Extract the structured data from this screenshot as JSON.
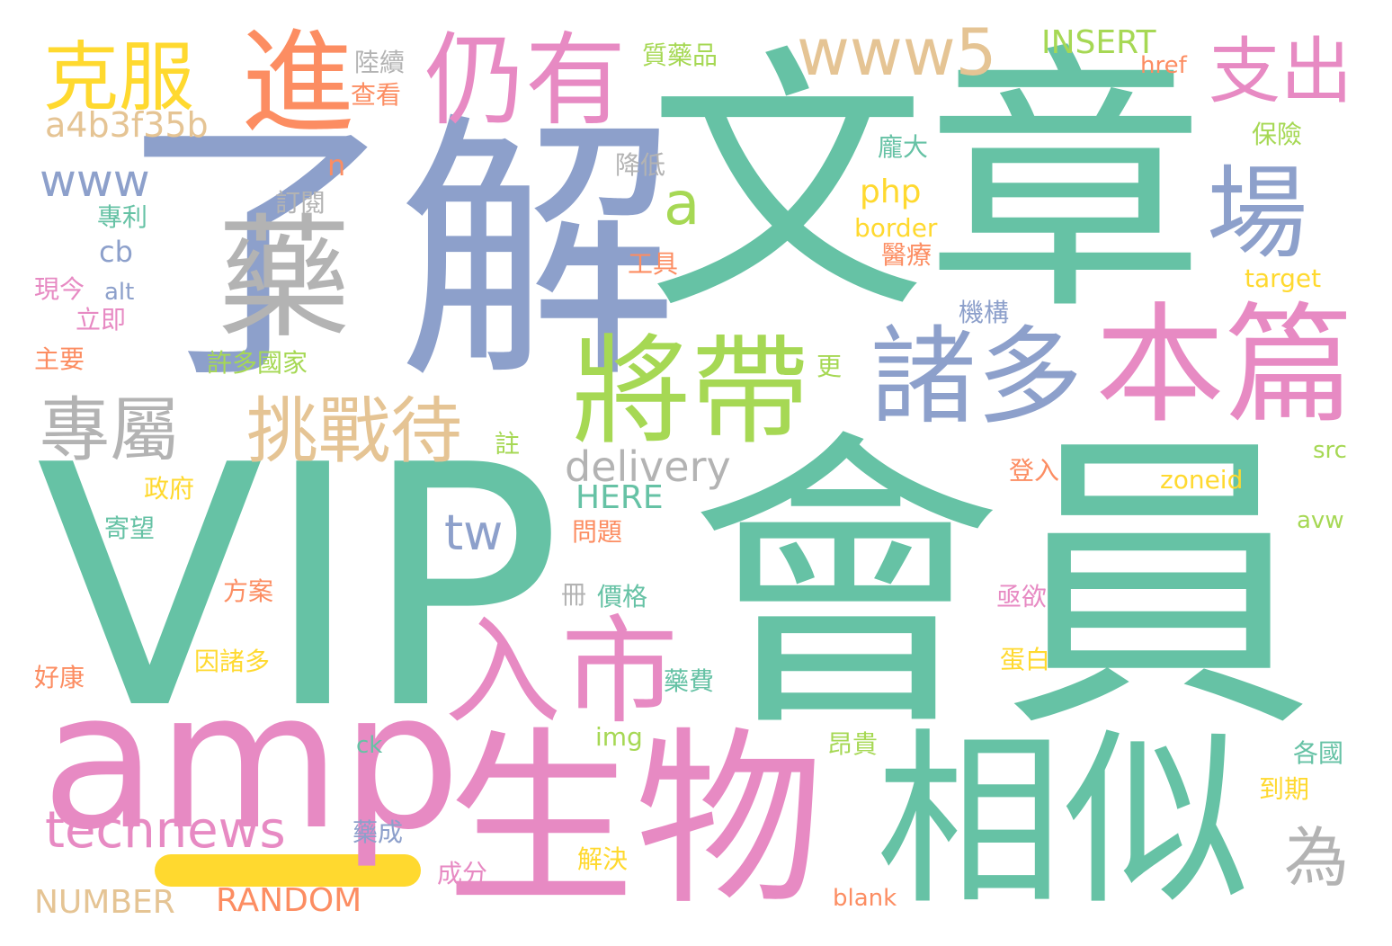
{
  "palette": {
    "green": "#66c2a5",
    "orange": "#fc8d62",
    "blue": "#8da0cb",
    "pink": "#e78ac3",
    "lime": "#a6d854",
    "yellow": "#ffd92f",
    "tan": "#e5c494",
    "gray": "#b3b3b3"
  },
  "bar_color": "#ffd92f",
  "words": [
    {
      "text": "文章",
      "color": "#66c2a5"
    },
    {
      "text": "會員",
      "color": "#66c2a5"
    },
    {
      "text": "VIP",
      "color": "#66c2a5"
    },
    {
      "text": "了解",
      "color": "#8da0cb"
    },
    {
      "text": "生物",
      "color": "#e78ac3"
    },
    {
      "text": "相似",
      "color": "#66c2a5"
    },
    {
      "text": "amp",
      "color": "#e78ac3"
    },
    {
      "text": "藥",
      "color": "#b3b3b3"
    },
    {
      "text": "將帶",
      "color": "#a6d854"
    },
    {
      "text": "本篇",
      "color": "#e78ac3"
    },
    {
      "text": "入市",
      "color": "#e78ac3"
    },
    {
      "text": "諸多",
      "color": "#8da0cb"
    },
    {
      "text": "進",
      "color": "#fc8d62"
    },
    {
      "text": "仍有",
      "color": "#e78ac3"
    },
    {
      "text": "場",
      "color": "#8da0cb"
    },
    {
      "text": "克服",
      "color": "#ffd92f"
    },
    {
      "text": "www5",
      "color": "#e5c494"
    },
    {
      "text": "支出",
      "color": "#e78ac3"
    },
    {
      "text": "挑戰待",
      "color": "#e5c494"
    },
    {
      "text": "專屬",
      "color": "#b3b3b3"
    },
    {
      "text": "technews",
      "color": "#e78ac3"
    },
    {
      "text": "www",
      "color": "#8da0cb"
    },
    {
      "text": "為",
      "color": "#b3b3b3"
    },
    {
      "text": "a",
      "color": "#a6d854"
    },
    {
      "text": "tw",
      "color": "#8da0cb"
    },
    {
      "text": "delivery",
      "color": "#b3b3b3"
    },
    {
      "text": "a4b3f35b",
      "color": "#e5c494"
    },
    {
      "text": "NUMBER",
      "color": "#e5c494"
    },
    {
      "text": "RANDOM",
      "color": "#fc8d62"
    },
    {
      "text": "INSERT",
      "color": "#a6d854"
    },
    {
      "text": "HERE",
      "color": "#66c2a5"
    },
    {
      "text": "php",
      "color": "#ffd92f"
    },
    {
      "text": "zoneid",
      "color": "#ffd92f"
    },
    {
      "text": "n",
      "color": "#fc8d62"
    },
    {
      "text": "cb",
      "color": "#8da0cb"
    },
    {
      "text": "質藥品",
      "color": "#a6d854"
    },
    {
      "text": "href",
      "color": "#fc8d62"
    },
    {
      "text": "陸續",
      "color": "#b3b3b3"
    },
    {
      "text": "查看",
      "color": "#fc8d62"
    },
    {
      "text": "保險",
      "color": "#a6d854"
    },
    {
      "text": "龐大",
      "color": "#66c2a5"
    },
    {
      "text": "降低",
      "color": "#b3b3b3"
    },
    {
      "text": "border",
      "color": "#ffd92f"
    },
    {
      "text": "訂閱",
      "color": "#b3b3b3"
    },
    {
      "text": "專利",
      "color": "#66c2a5"
    },
    {
      "text": "醫療",
      "color": "#fc8d62"
    },
    {
      "text": "工具",
      "color": "#fc8d62"
    },
    {
      "text": "target",
      "color": "#ffd92f"
    },
    {
      "text": "現今",
      "color": "#e78ac3"
    },
    {
      "text": "alt",
      "color": "#8da0cb"
    },
    {
      "text": "立即",
      "color": "#e78ac3"
    },
    {
      "text": "機構",
      "color": "#8da0cb"
    },
    {
      "text": "主要",
      "color": "#fc8d62"
    },
    {
      "text": "許多國家",
      "color": "#a6d854"
    },
    {
      "text": "更",
      "color": "#a6d854"
    },
    {
      "text": "註",
      "color": "#a6d854"
    },
    {
      "text": "src",
      "color": "#a6d854"
    },
    {
      "text": "登入",
      "color": "#fc8d62"
    },
    {
      "text": "政府",
      "color": "#ffd92f"
    },
    {
      "text": "寄望",
      "color": "#66c2a5"
    },
    {
      "text": "問題",
      "color": "#fc8d62"
    },
    {
      "text": "avw",
      "color": "#a6d854"
    },
    {
      "text": "冊",
      "color": "#b3b3b3"
    },
    {
      "text": "價格",
      "color": "#66c2a5"
    },
    {
      "text": "亟欲",
      "color": "#e78ac3"
    },
    {
      "text": "方案",
      "color": "#fc8d62"
    },
    {
      "text": "蛋白",
      "color": "#ffd92f"
    },
    {
      "text": "好康",
      "color": "#fc8d62"
    },
    {
      "text": "因諸多",
      "color": "#ffd92f"
    },
    {
      "text": "藥費",
      "color": "#66c2a5"
    },
    {
      "text": "img",
      "color": "#a6d854"
    },
    {
      "text": "ck",
      "color": "#66c2a5"
    },
    {
      "text": "昂貴",
      "color": "#a6d854"
    },
    {
      "text": "各國",
      "color": "#66c2a5"
    },
    {
      "text": "到期",
      "color": "#ffd92f"
    },
    {
      "text": "藥成",
      "color": "#8da0cb"
    },
    {
      "text": "解決",
      "color": "#ffd92f"
    },
    {
      "text": "成分",
      "color": "#e78ac3"
    },
    {
      "text": "blank",
      "color": "#fc8d62"
    }
  ]
}
